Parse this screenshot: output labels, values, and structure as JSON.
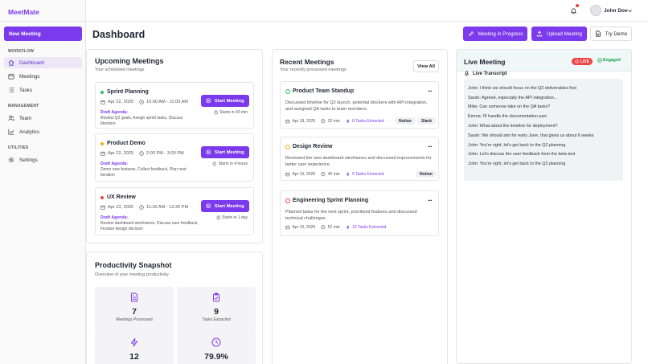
{
  "app": {
    "name": "MeetMate",
    "new_meeting": "New Meeting"
  },
  "sidebar": {
    "sections": [
      {
        "label": "WORKFLOW",
        "items": [
          {
            "label": "Dashboard",
            "icon": "home-icon",
            "active": true
          },
          {
            "label": "Meetings",
            "icon": "calendar-icon"
          },
          {
            "label": "Tasks",
            "icon": "list-icon"
          }
        ]
      },
      {
        "label": "MANAGEMENT",
        "items": [
          {
            "label": "Team",
            "icon": "users-icon"
          },
          {
            "label": "Analytics",
            "icon": "chart-icon"
          }
        ]
      },
      {
        "label": "UTILITIES",
        "items": [
          {
            "label": "Settings",
            "icon": "gear-icon"
          }
        ]
      }
    ]
  },
  "header": {
    "user": "John Doe",
    "title": "Dashboard",
    "buttons": {
      "in_progress": "Meeting in Progress",
      "upload": "Upload Meeting",
      "demo": "Try Demo"
    }
  },
  "upcoming": {
    "title": "Upcoming Meetings",
    "subtitle": "Your scheduled meetings",
    "agenda_label": "Draft Agenda:",
    "start_label": "Start Meeting",
    "items": [
      {
        "name": "Sprint Planning",
        "color": "#22c55e",
        "date": "Apr 22, 2025",
        "time": "10:00 AM - 11:00 AM",
        "agenda": "Review Q2 goals, Assign sprint tasks, Discuss blockers",
        "starts": "Starts in 43 min"
      },
      {
        "name": "Product Demo",
        "color": "#eab308",
        "date": "Apr 22, 2025",
        "time": "2:00 PM - 3:00 PM",
        "agenda": "Demo new features, Collect feedback, Plan next iteration",
        "starts": "Starts in 4 hours"
      },
      {
        "name": "UX Review",
        "color": "#ef4444",
        "date": "Apr 23, 2025",
        "time": "11:30 AM - 12:30 PM",
        "agenda": "Review dashboard wireframes, Discuss user feedback, Finalize design decision",
        "starts": "Starts in 1 day"
      }
    ]
  },
  "recent": {
    "title": "Recent Meetings",
    "subtitle": "Your recently processed meetings",
    "view_all": "View All",
    "items": [
      {
        "name": "Product Team Standup",
        "ring": "#22c55e",
        "desc": "Discussed timeline for Q2 launch, potential blockers with API integration, and assigned QA tasks to team members.",
        "date": "Apr 18, 2025",
        "duration": "32 min",
        "tasks": "8 Tasks Extracted",
        "tags": [
          "Notion",
          "Slack"
        ]
      },
      {
        "name": "Design Review",
        "ring": "#eab308",
        "desc": "Reviewed the new dashboard wireframes and discussed improvements for better user experience.",
        "date": "Apr 15, 2025",
        "duration": "45 min",
        "tasks": "5 Tasks Extracted",
        "tags": [
          "Notion"
        ]
      },
      {
        "name": "Engineering Sprint Planning",
        "ring": "#ef4444",
        "desc": "Planned tasks for the next sprint, prioritized features and discussed technical challenges.",
        "date": "Apr 10, 2025",
        "duration": "52 min",
        "tasks": "12 Tasks Extracted",
        "tags": []
      }
    ]
  },
  "snapshot": {
    "title": "Productivity Snapshot",
    "subtitle": "Overview of your meeting productivity",
    "stats": [
      {
        "value": "7",
        "label": "Meetings Processed",
        "icon": "document-icon"
      },
      {
        "value": "9",
        "label": "Tasks Extracted",
        "icon": "clipboard-check-icon"
      },
      {
        "value": "12",
        "label": "",
        "icon": "lightning-icon"
      },
      {
        "value": "79.9%",
        "label": "",
        "icon": "clock-icon"
      }
    ]
  },
  "live": {
    "title": "Live Meeting",
    "badge": "LIVE",
    "status": "Engaged",
    "transcript_label": "Live Transcript",
    "lines": [
      "John: I think we should focus on the Q2 deliverables first",
      "Sarah: Agreed, especially the API integration...",
      "Mike: Can someone take on the QA tasks?",
      "Emma: I'll handle the documentation part",
      "John: What about the timeline for deployment?",
      "Sarah: We should aim for early June, that gives us about 6 weeks",
      "John: You're right, let's get back to the Q2 planning",
      "John: Let's discuss the user feedback from the beta test",
      "John: You're right, let's get back to the Q2 planning"
    ]
  }
}
